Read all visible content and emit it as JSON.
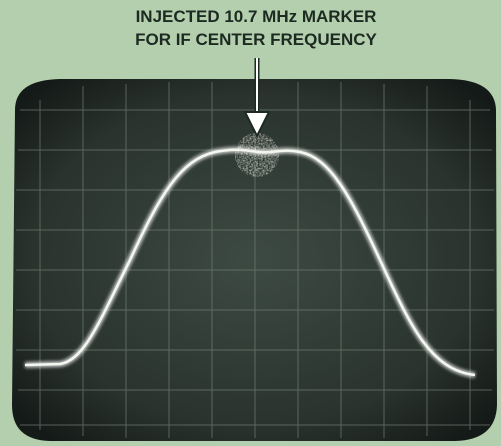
{
  "annotation": {
    "lines": [
      "INJECTED 10.7 MHz MARKER",
      "FOR IF CENTER FREQUENCY"
    ]
  }
}
